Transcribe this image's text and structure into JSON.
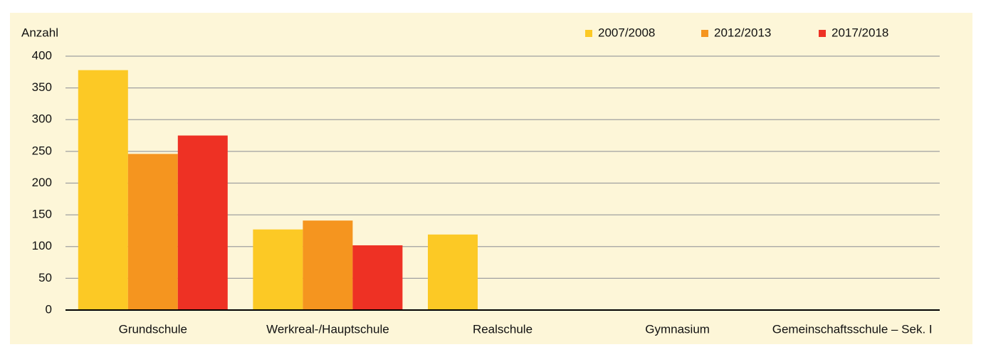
{
  "chart_data": {
    "type": "bar",
    "y_axis_label": "Anzahl",
    "categories": [
      "Grundschule",
      "Werkreal-/Hauptschule",
      "Realschule",
      "Gymnasium",
      "Gemeinschaftsschule – Sek. I"
    ],
    "series": [
      {
        "name": "2007/2008",
        "color": "#fcc925",
        "values": [
          378,
          127,
          119,
          null,
          null
        ]
      },
      {
        "name": "2012/2013",
        "color": "#f5951f",
        "values": [
          246,
          141,
          null,
          null,
          null
        ]
      },
      {
        "name": "2017/2018",
        "color": "#ee3124",
        "values": [
          275,
          102,
          null,
          null,
          null
        ]
      }
    ],
    "ylim": [
      0,
      400
    ],
    "yticks": [
      0,
      50,
      100,
      150,
      200,
      250,
      300,
      350,
      400
    ],
    "grid": true,
    "legend": "top-right"
  }
}
